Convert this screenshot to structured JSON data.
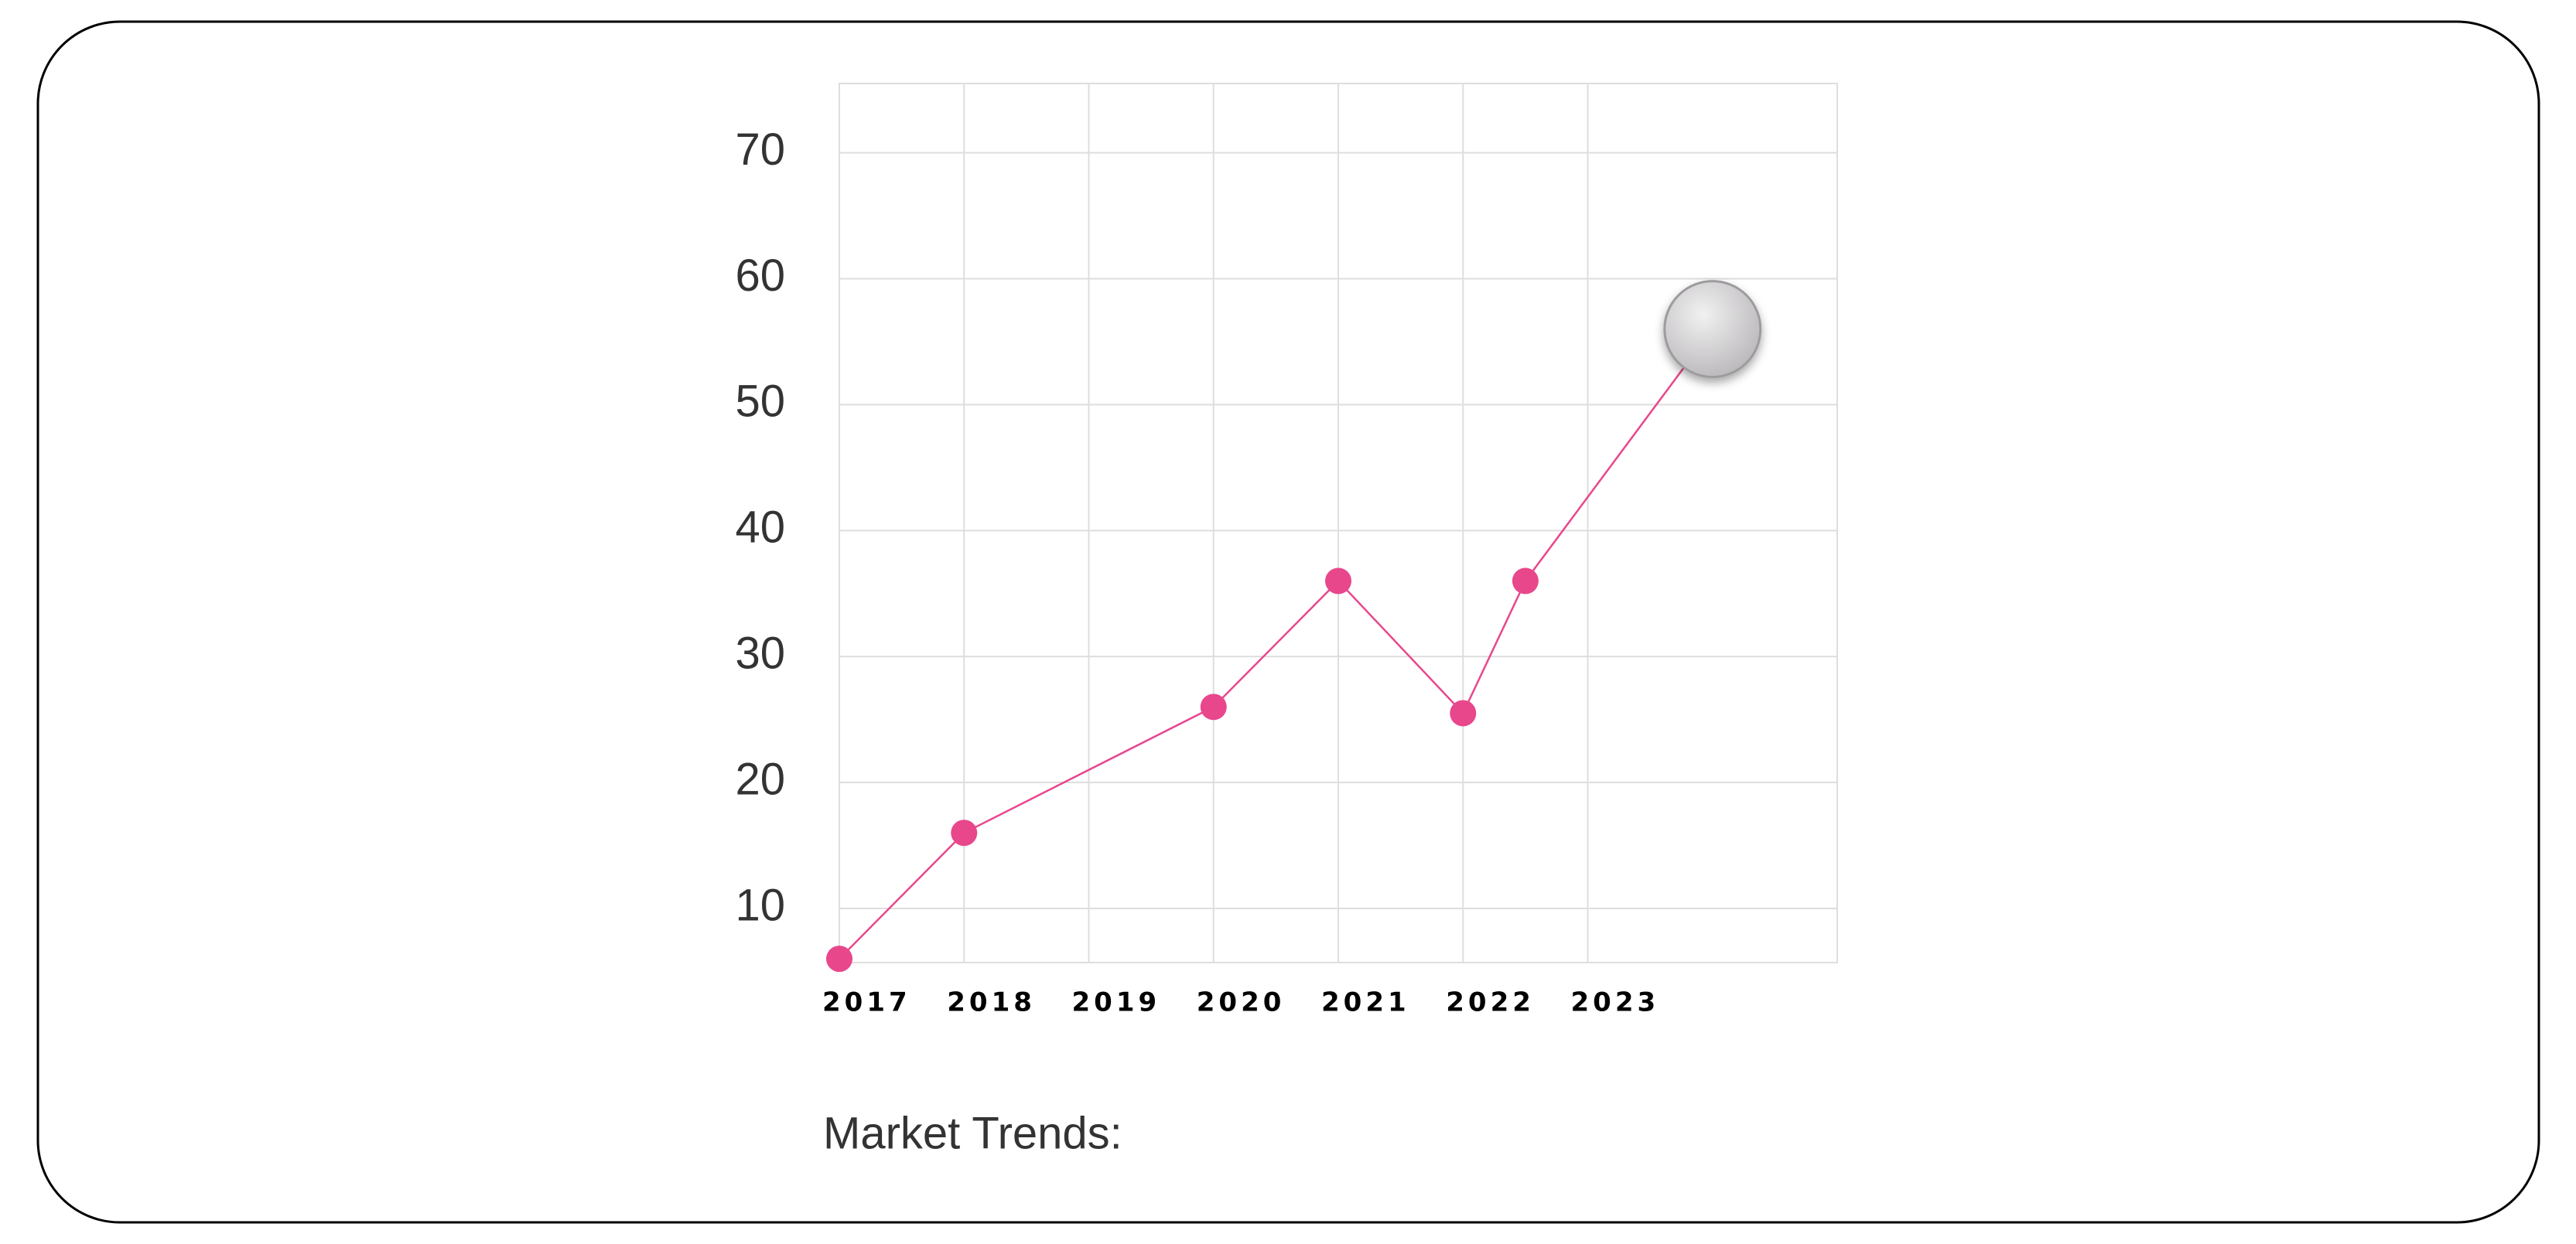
{
  "chart_data": {
    "type": "line",
    "title": "Market Trends:",
    "x": [
      2017,
      2018,
      2020,
      2021,
      2022,
      2022.5,
      2024
    ],
    "values": [
      6,
      16,
      26,
      36,
      25.5,
      36,
      56
    ],
    "color": "#e8478c",
    "xlim": [
      2017,
      2025
    ],
    "xticks": [
      2017,
      2018,
      2019,
      2020,
      2021,
      2022,
      2023
    ],
    "ylim": [
      5.7,
      75.5
    ],
    "yticks": [
      10,
      20,
      30,
      40,
      50,
      60,
      70
    ],
    "grid": true
  }
}
